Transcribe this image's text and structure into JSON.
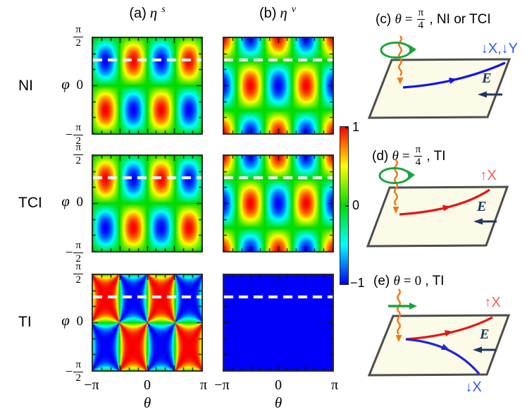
{
  "titles": {
    "a": {
      "prefix": "(a)",
      "symbol": "η",
      "sup": "s"
    },
    "b": {
      "prefix": "(b)",
      "symbol": "η",
      "sup": "ν"
    }
  },
  "rows": [
    {
      "label": "NI"
    },
    {
      "label": "TCI"
    },
    {
      "label": "TI"
    }
  ],
  "axes": {
    "phi": "φ",
    "theta": "θ",
    "y_top_num": "π",
    "y_top_den": "2",
    "y_mid": "0",
    "y_bot_sign": "−",
    "y_bot_num": "π",
    "y_bot_den": "2",
    "x_left": "−π",
    "x_mid": "0",
    "x_right": "π"
  },
  "colorbar": {
    "max": "1",
    "mid": "0",
    "min": "−1",
    "stops": [
      {
        "v": -1,
        "color": "#0000FA"
      },
      {
        "v": -0.5,
        "color": "#00FFFF"
      },
      {
        "v": 0,
        "color": "#00DC00"
      },
      {
        "v": 0.5,
        "color": "#FFFF00"
      },
      {
        "v": 1,
        "color": "#FA0000"
      }
    ]
  },
  "chart_data": [
    {
      "type": "heatmap",
      "row": "NI",
      "panel": "(a)",
      "quantity": "η^s",
      "formula": "-sin(2θ)·sin(2φ)",
      "x": "θ",
      "x_range": [
        "−π",
        "π"
      ],
      "y": "φ",
      "y_range": [
        "−π/2",
        "π/2"
      ],
      "z_range": [
        -1,
        1
      ],
      "dashed_line": "φ=π/4"
    },
    {
      "type": "heatmap",
      "row": "NI",
      "panel": "(b)",
      "quantity": "η^ν",
      "formula": "-cos(2θ)·cos(2φ)",
      "x": "θ",
      "x_range": [
        "−π",
        "π"
      ],
      "y": "φ",
      "y_range": [
        "−π/2",
        "π/2"
      ],
      "z_range": [
        -1,
        1
      ],
      "dashed_line": "φ=π/4"
    },
    {
      "type": "heatmap",
      "row": "TCI",
      "panel": "(a)",
      "quantity": "η^s",
      "formula": "sin(2θ)·sin(2φ)",
      "x": "θ",
      "x_range": [
        "−π",
        "π"
      ],
      "y": "φ",
      "y_range": [
        "−π/2",
        "π/2"
      ],
      "z_range": [
        -1,
        1
      ],
      "dashed_line": "φ=π/4"
    },
    {
      "type": "heatmap",
      "row": "TCI",
      "panel": "(b)",
      "quantity": "η^ν",
      "formula": "-cos(2θ)·cos(2φ)",
      "x": "θ",
      "x_range": [
        "−π",
        "π"
      ],
      "y": "φ",
      "y_range": [
        "−π/2",
        "π/2"
      ],
      "z_range": [
        -1,
        1
      ],
      "dashed_line": "φ=π/4"
    },
    {
      "type": "heatmap",
      "row": "TI",
      "panel": "(a)",
      "quantity": "η^s",
      "formula": "2·sin(2θ)·sin(2φ)/(sin²(2θ)+sin²(2φ))",
      "x": "θ",
      "x_range": [
        "−π",
        "π"
      ],
      "y": "φ",
      "y_range": [
        "−π/2",
        "π/2"
      ],
      "z_range": [
        -1,
        1
      ],
      "dashed_line": "φ=π/4"
    },
    {
      "type": "heatmap",
      "row": "TI",
      "panel": "(b)",
      "quantity": "η^ν",
      "formula": "-1",
      "x": "θ",
      "x_range": [
        "−π",
        "π"
      ],
      "y": "φ",
      "y_range": [
        "−π/2",
        "π/2"
      ],
      "z_range": [
        -1,
        1
      ],
      "dashed_line": "φ=π/4"
    }
  ],
  "diagrams": {
    "c": {
      "prefix": "(c)",
      "theta": "θ",
      "eq": "=",
      "frac_num": "π",
      "frac_den": "4",
      "suffix": " , NI or TCI",
      "polarization": "circular",
      "spin_label": "↓X,↓Y",
      "spin_label_color": "#2E5BE8",
      "trajectory_color": "#1414E8",
      "efield_label": "E"
    },
    "d": {
      "prefix": "(d)",
      "theta": "θ",
      "eq": "=",
      "frac_num": "π",
      "frac_den": "4",
      "suffix": " , TI",
      "polarization": "circular",
      "spin_label": "↑X",
      "spin_label_color": "#F85A5A",
      "trajectory_color": "#E81414",
      "efield_label": "E"
    },
    "e": {
      "prefix": "(e)",
      "theta": "θ",
      "eq": "=",
      "value": "0",
      "suffix": " , TI",
      "polarization": "linear",
      "spin_label_up": "↑X",
      "spin_label_up_color": "#F85A5A",
      "spin_label_down": "↓X",
      "spin_label_down_color": "#2E5BE8",
      "trajectory_up_color": "#E81414",
      "trajectory_down_color": "#2323DC",
      "efield_label": "E"
    }
  },
  "colors": {
    "photon": "#F07818",
    "polarization": "#18A63C",
    "efield": "#1F3864",
    "plane_fill": "#FCFBE8",
    "plane_border": "#4D4D4D",
    "tick": "#111111",
    "frame": "#2B2B2B",
    "dash": "#FFFFFF"
  }
}
